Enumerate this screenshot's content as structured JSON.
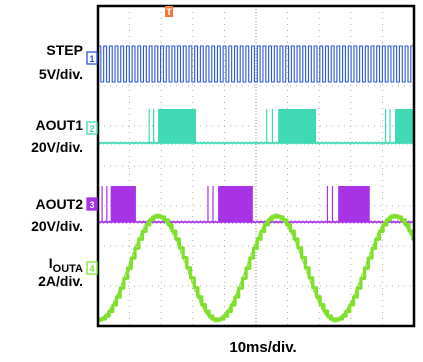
{
  "chart_data": {
    "type": "line",
    "title": "",
    "xlabel": "10ms/div.",
    "x_unit": "ms",
    "x_divisions": 10,
    "y_divisions": 8,
    "xlim": [
      0,
      100
    ],
    "grid": true,
    "trigger_marker": "T",
    "channels": [
      {
        "id": "1",
        "name": "STEP",
        "scale": "5V/div.",
        "color": "#2b55d9",
        "type": "square-pulse-train",
        "pulse_period_ms": 1.8,
        "high_div": 1.0,
        "low_div": 0.0
      },
      {
        "id": "2",
        "name": "AOUT1",
        "scale": "20V/div.",
        "color": "#3fd9b5",
        "type": "pwm-burst",
        "bursts_ms": [
          [
            19,
            31
          ],
          [
            57,
            69
          ],
          [
            94,
            100
          ]
        ],
        "spikes_ms": [
          16.2,
          17.6,
          53.4,
          55.2,
          91.0,
          92.4
        ],
        "amplitude_div": 1.0
      },
      {
        "id": "3",
        "name": "AOUT2",
        "scale": "20V/div.",
        "color": "#a832e6",
        "type": "pwm-burst",
        "bursts_ms": [
          [
            4,
            12
          ],
          [
            38,
            49
          ],
          [
            76,
            86
          ]
        ],
        "spikes_ms": [
          1.3,
          2.8,
          34.8,
          36.4,
          72.6,
          74.2
        ],
        "amplitude_div": 1.0
      },
      {
        "id": "4",
        "name": "I",
        "subscript": "OUTA",
        "scale": "2A/div.",
        "color": "#7fe02c",
        "type": "stepped-sine",
        "period_ms": 37.5,
        "phase_ms": 9.4,
        "amplitude_div": 1.3,
        "steps_per_cycle": 32
      }
    ]
  }
}
